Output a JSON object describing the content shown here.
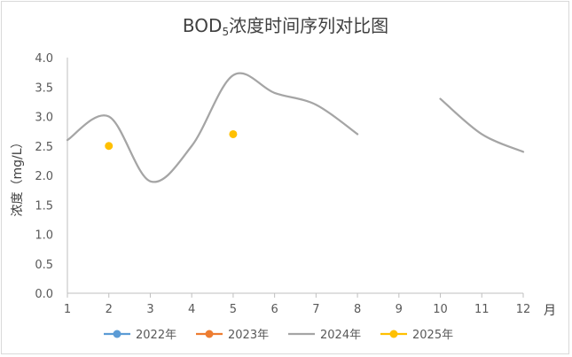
{
  "chart_data": {
    "type": "line",
    "title": "BOD",
    "title_subscript": "5",
    "title_suffix": "浓度时间序列对比图",
    "ylabel": "浓度（mg/L）",
    "xlabel": "月",
    "ylim": [
      0,
      4
    ],
    "ytick_step": 0.5,
    "ytick_labels": [
      "0.0",
      "0.5",
      "1.0",
      "1.5",
      "2.0",
      "2.5",
      "3.0",
      "3.5",
      "4.0"
    ],
    "x": [
      1,
      2,
      3,
      4,
      5,
      6,
      7,
      8,
      9,
      10,
      11,
      12
    ],
    "grid": false,
    "legend_position": "bottom",
    "series": [
      {
        "name": "2022年",
        "color": "#5B9BD5",
        "values": [
          null,
          null,
          null,
          null,
          null,
          null,
          null,
          null,
          null,
          null,
          null,
          null
        ]
      },
      {
        "name": "2023年",
        "color": "#ED7D31",
        "values": [
          null,
          null,
          null,
          null,
          null,
          null,
          null,
          null,
          null,
          null,
          null,
          null
        ]
      },
      {
        "name": "2024年",
        "color": "#A5A5A5",
        "values": [
          2.6,
          3.0,
          1.9,
          2.5,
          3.7,
          3.4,
          3.2,
          2.7,
          null,
          3.3,
          2.7,
          2.4
        ],
        "smooth": true
      },
      {
        "name": "2025年",
        "color": "#FFC000",
        "values": [
          null,
          2.5,
          null,
          null,
          2.7,
          null,
          null,
          null,
          null,
          null,
          null,
          null
        ]
      }
    ]
  }
}
